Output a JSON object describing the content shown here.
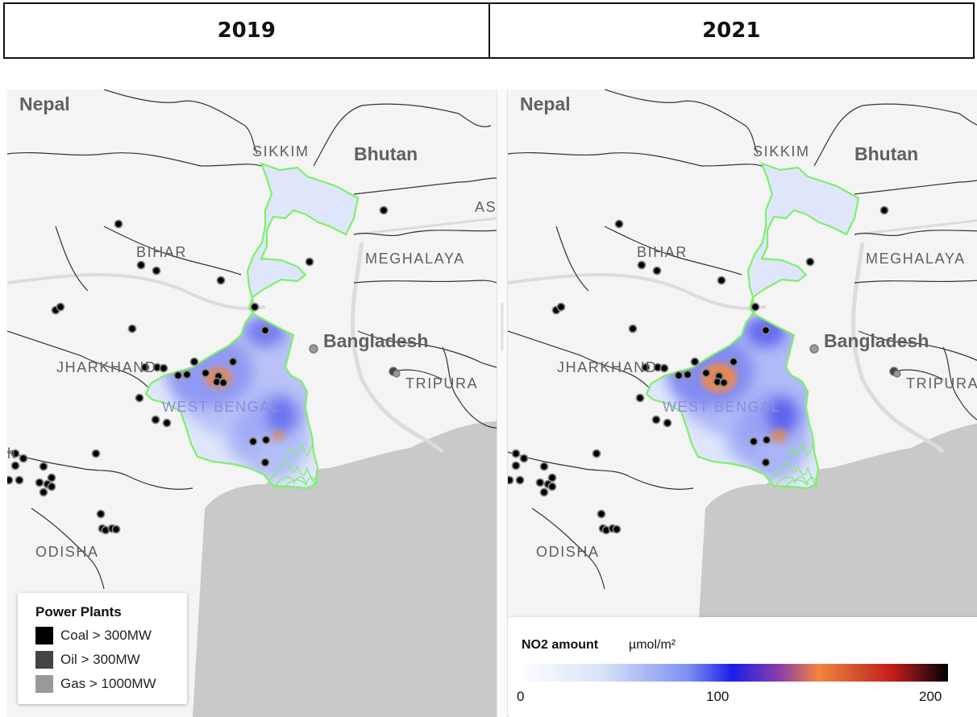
{
  "header": {
    "years": [
      "2019",
      "2021"
    ]
  },
  "map": {
    "labels": {
      "nepal": "Nepal",
      "sikkim": "SIKKIM",
      "bhutan": "Bhutan",
      "assam_partial": "AS",
      "assam_partial_right": "A",
      "bihar": "BIHAR",
      "meghalaya": "MEGHALAYA",
      "bangladesh": "Bangladesh",
      "jharkhand": "JHARKHAND",
      "tripura": "TRIPURA",
      "west_bengal": "WEST BENGAL",
      "odisha": "ODISHA",
      "edge_partial": "h"
    },
    "colors": {
      "land": "#f4f4f4",
      "water": "#c9c9c9",
      "state_outline": "#7ef06a",
      "plant_coal": "#000000",
      "plant_oil": "#444444",
      "plant_gas": "#999999"
    }
  },
  "power_legend": {
    "title": "Power Plants",
    "items": [
      {
        "label": "Coal > 300MW",
        "color": "#000000"
      },
      {
        "label": "Oil > 300MW",
        "color": "#444444"
      },
      {
        "label": "Gas > 1000MW",
        "color": "#999999"
      }
    ]
  },
  "no2_legend": {
    "title": "NO2 amount",
    "unit": "µmol/m²",
    "ticks": [
      "0",
      "100",
      "200"
    ],
    "min": 0,
    "max": 200
  }
}
